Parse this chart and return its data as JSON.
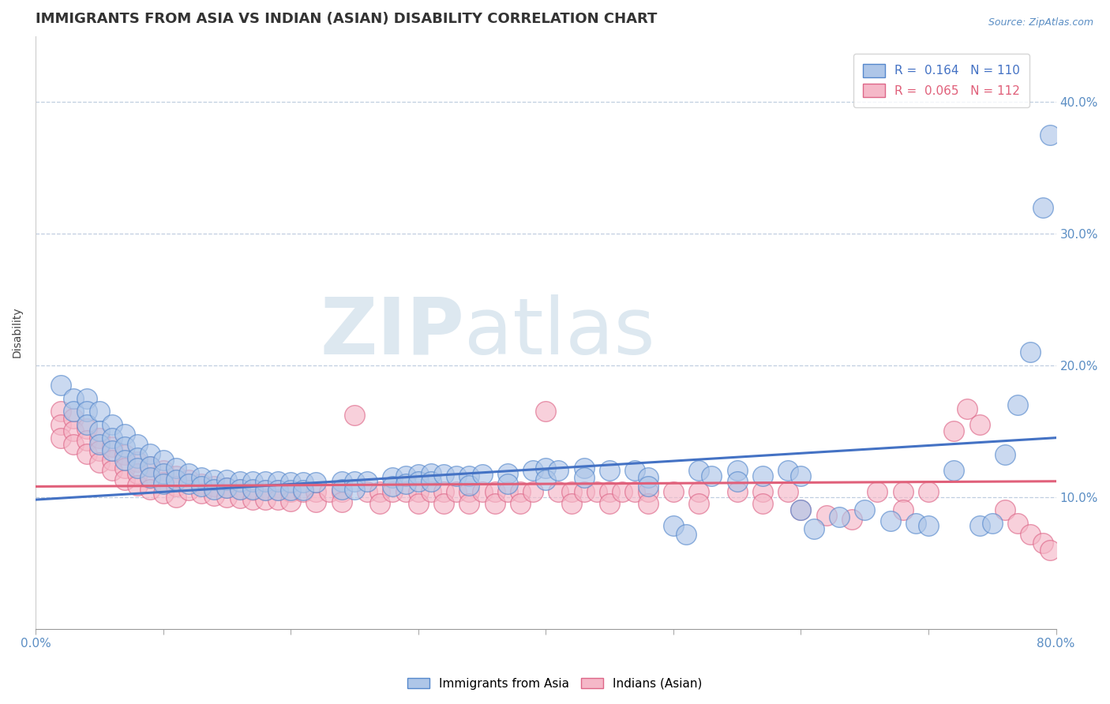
{
  "title": "IMMIGRANTS FROM ASIA VS INDIAN (ASIAN) DISABILITY CORRELATION CHART",
  "source": "Source: ZipAtlas.com",
  "ylabel": "Disability",
  "xlim": [
    0.0,
    0.8
  ],
  "ylim": [
    0.0,
    0.45
  ],
  "xticks": [
    0.0,
    0.1,
    0.2,
    0.3,
    0.4,
    0.5,
    0.6,
    0.7,
    0.8
  ],
  "yticks": [
    0.1,
    0.2,
    0.3,
    0.4
  ],
  "yticklabels": [
    "10.0%",
    "20.0%",
    "30.0%",
    "40.0%"
  ],
  "blue_R": 0.164,
  "blue_N": 110,
  "pink_R": 0.065,
  "pink_N": 112,
  "blue_face_color": "#aec6e8",
  "blue_edge_color": "#5588cc",
  "pink_face_color": "#f5b8c8",
  "pink_edge_color": "#dd6688",
  "blue_line_color": "#4472c4",
  "pink_line_color": "#e0607a",
  "blue_scatter": [
    [
      0.02,
      0.185
    ],
    [
      0.03,
      0.175
    ],
    [
      0.03,
      0.165
    ],
    [
      0.04,
      0.175
    ],
    [
      0.04,
      0.165
    ],
    [
      0.04,
      0.155
    ],
    [
      0.05,
      0.165
    ],
    [
      0.05,
      0.15
    ],
    [
      0.05,
      0.14
    ],
    [
      0.06,
      0.155
    ],
    [
      0.06,
      0.145
    ],
    [
      0.06,
      0.135
    ],
    [
      0.07,
      0.148
    ],
    [
      0.07,
      0.138
    ],
    [
      0.07,
      0.128
    ],
    [
      0.08,
      0.14
    ],
    [
      0.08,
      0.13
    ],
    [
      0.08,
      0.122
    ],
    [
      0.09,
      0.133
    ],
    [
      0.09,
      0.123
    ],
    [
      0.09,
      0.115
    ],
    [
      0.1,
      0.128
    ],
    [
      0.1,
      0.118
    ],
    [
      0.1,
      0.11
    ],
    [
      0.11,
      0.122
    ],
    [
      0.11,
      0.113
    ],
    [
      0.12,
      0.118
    ],
    [
      0.12,
      0.11
    ],
    [
      0.13,
      0.115
    ],
    [
      0.13,
      0.108
    ],
    [
      0.14,
      0.113
    ],
    [
      0.14,
      0.106
    ],
    [
      0.15,
      0.113
    ],
    [
      0.15,
      0.107
    ],
    [
      0.16,
      0.112
    ],
    [
      0.16,
      0.106
    ],
    [
      0.17,
      0.112
    ],
    [
      0.17,
      0.106
    ],
    [
      0.18,
      0.112
    ],
    [
      0.18,
      0.105
    ],
    [
      0.19,
      0.112
    ],
    [
      0.19,
      0.105
    ],
    [
      0.2,
      0.111
    ],
    [
      0.2,
      0.105
    ],
    [
      0.21,
      0.111
    ],
    [
      0.21,
      0.105
    ],
    [
      0.22,
      0.111
    ],
    [
      0.24,
      0.112
    ],
    [
      0.24,
      0.106
    ],
    [
      0.25,
      0.112
    ],
    [
      0.25,
      0.106
    ],
    [
      0.26,
      0.112
    ],
    [
      0.28,
      0.115
    ],
    [
      0.28,
      0.108
    ],
    [
      0.29,
      0.116
    ],
    [
      0.29,
      0.11
    ],
    [
      0.3,
      0.117
    ],
    [
      0.3,
      0.112
    ],
    [
      0.31,
      0.118
    ],
    [
      0.31,
      0.112
    ],
    [
      0.32,
      0.117
    ],
    [
      0.33,
      0.116
    ],
    [
      0.34,
      0.116
    ],
    [
      0.34,
      0.109
    ],
    [
      0.35,
      0.117
    ],
    [
      0.37,
      0.118
    ],
    [
      0.37,
      0.11
    ],
    [
      0.39,
      0.12
    ],
    [
      0.4,
      0.122
    ],
    [
      0.4,
      0.113
    ],
    [
      0.41,
      0.12
    ],
    [
      0.43,
      0.122
    ],
    [
      0.43,
      0.115
    ],
    [
      0.45,
      0.12
    ],
    [
      0.47,
      0.12
    ],
    [
      0.48,
      0.115
    ],
    [
      0.48,
      0.108
    ],
    [
      0.5,
      0.078
    ],
    [
      0.51,
      0.072
    ],
    [
      0.52,
      0.12
    ],
    [
      0.53,
      0.116
    ],
    [
      0.55,
      0.12
    ],
    [
      0.55,
      0.112
    ],
    [
      0.57,
      0.116
    ],
    [
      0.59,
      0.12
    ],
    [
      0.6,
      0.116
    ],
    [
      0.6,
      0.09
    ],
    [
      0.61,
      0.076
    ],
    [
      0.63,
      0.085
    ],
    [
      0.65,
      0.09
    ],
    [
      0.67,
      0.082
    ],
    [
      0.69,
      0.08
    ],
    [
      0.7,
      0.078
    ],
    [
      0.72,
      0.12
    ],
    [
      0.74,
      0.078
    ],
    [
      0.75,
      0.08
    ],
    [
      0.76,
      0.132
    ],
    [
      0.77,
      0.17
    ],
    [
      0.78,
      0.21
    ],
    [
      0.79,
      0.32
    ],
    [
      0.795,
      0.375
    ]
  ],
  "pink_scatter": [
    [
      0.02,
      0.165
    ],
    [
      0.02,
      0.155
    ],
    [
      0.02,
      0.145
    ],
    [
      0.03,
      0.16
    ],
    [
      0.03,
      0.15
    ],
    [
      0.03,
      0.14
    ],
    [
      0.04,
      0.152
    ],
    [
      0.04,
      0.143
    ],
    [
      0.04,
      0.133
    ],
    [
      0.05,
      0.145
    ],
    [
      0.05,
      0.135
    ],
    [
      0.05,
      0.126
    ],
    [
      0.06,
      0.138
    ],
    [
      0.06,
      0.128
    ],
    [
      0.06,
      0.12
    ],
    [
      0.07,
      0.132
    ],
    [
      0.07,
      0.122
    ],
    [
      0.07,
      0.113
    ],
    [
      0.08,
      0.127
    ],
    [
      0.08,
      0.118
    ],
    [
      0.08,
      0.109
    ],
    [
      0.09,
      0.123
    ],
    [
      0.09,
      0.114
    ],
    [
      0.09,
      0.106
    ],
    [
      0.1,
      0.12
    ],
    [
      0.1,
      0.111
    ],
    [
      0.1,
      0.103
    ],
    [
      0.11,
      0.116
    ],
    [
      0.11,
      0.108
    ],
    [
      0.11,
      0.1
    ],
    [
      0.12,
      0.113
    ],
    [
      0.12,
      0.105
    ],
    [
      0.13,
      0.11
    ],
    [
      0.13,
      0.103
    ],
    [
      0.14,
      0.108
    ],
    [
      0.14,
      0.101
    ],
    [
      0.15,
      0.107
    ],
    [
      0.15,
      0.1
    ],
    [
      0.16,
      0.106
    ],
    [
      0.16,
      0.099
    ],
    [
      0.17,
      0.105
    ],
    [
      0.17,
      0.098
    ],
    [
      0.18,
      0.105
    ],
    [
      0.18,
      0.098
    ],
    [
      0.19,
      0.105
    ],
    [
      0.19,
      0.098
    ],
    [
      0.2,
      0.104
    ],
    [
      0.2,
      0.097
    ],
    [
      0.21,
      0.104
    ],
    [
      0.22,
      0.104
    ],
    [
      0.22,
      0.096
    ],
    [
      0.23,
      0.104
    ],
    [
      0.24,
      0.104
    ],
    [
      0.24,
      0.096
    ],
    [
      0.25,
      0.162
    ],
    [
      0.26,
      0.104
    ],
    [
      0.27,
      0.104
    ],
    [
      0.27,
      0.095
    ],
    [
      0.28,
      0.104
    ],
    [
      0.29,
      0.104
    ],
    [
      0.3,
      0.104
    ],
    [
      0.3,
      0.095
    ],
    [
      0.31,
      0.104
    ],
    [
      0.32,
      0.104
    ],
    [
      0.32,
      0.095
    ],
    [
      0.33,
      0.104
    ],
    [
      0.34,
      0.104
    ],
    [
      0.34,
      0.095
    ],
    [
      0.35,
      0.104
    ],
    [
      0.36,
      0.104
    ],
    [
      0.36,
      0.095
    ],
    [
      0.37,
      0.104
    ],
    [
      0.38,
      0.104
    ],
    [
      0.38,
      0.095
    ],
    [
      0.39,
      0.104
    ],
    [
      0.4,
      0.165
    ],
    [
      0.41,
      0.104
    ],
    [
      0.42,
      0.104
    ],
    [
      0.42,
      0.095
    ],
    [
      0.43,
      0.104
    ],
    [
      0.44,
      0.104
    ],
    [
      0.45,
      0.104
    ],
    [
      0.45,
      0.095
    ],
    [
      0.46,
      0.104
    ],
    [
      0.47,
      0.104
    ],
    [
      0.48,
      0.104
    ],
    [
      0.48,
      0.095
    ],
    [
      0.5,
      0.104
    ],
    [
      0.52,
      0.104
    ],
    [
      0.52,
      0.095
    ],
    [
      0.55,
      0.104
    ],
    [
      0.57,
      0.104
    ],
    [
      0.57,
      0.095
    ],
    [
      0.59,
      0.104
    ],
    [
      0.6,
      0.09
    ],
    [
      0.62,
      0.086
    ],
    [
      0.64,
      0.083
    ],
    [
      0.66,
      0.104
    ],
    [
      0.68,
      0.104
    ],
    [
      0.68,
      0.09
    ],
    [
      0.7,
      0.104
    ],
    [
      0.72,
      0.15
    ],
    [
      0.73,
      0.167
    ],
    [
      0.74,
      0.155
    ],
    [
      0.76,
      0.09
    ],
    [
      0.77,
      0.08
    ],
    [
      0.78,
      0.072
    ],
    [
      0.79,
      0.065
    ],
    [
      0.795,
      0.06
    ]
  ],
  "blue_trend": [
    0.0,
    0.8,
    0.098,
    0.145
  ],
  "pink_trend": [
    0.0,
    0.8,
    0.108,
    0.112
  ],
  "watermark_zip": "ZIP",
  "watermark_atlas": "atlas",
  "background_color": "#ffffff",
  "grid_color": "#c0cfe0",
  "title_fontsize": 13,
  "axis_label_fontsize": 10,
  "tick_fontsize": 11,
  "legend_fontsize": 11,
  "source_text": "Source: ZipAtlas.com"
}
